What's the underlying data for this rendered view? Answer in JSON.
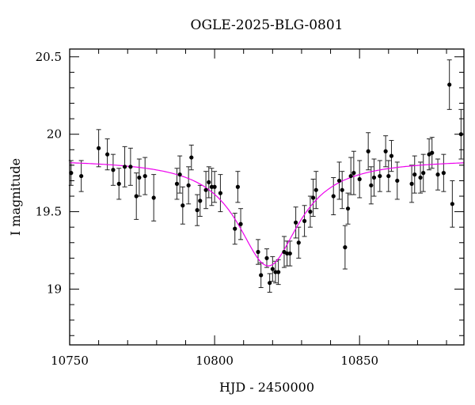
{
  "chart_data": {
    "type": "scatter",
    "title": "OGLE-2025-BLG-0801",
    "xlabel": "HJD - 2450000",
    "ylabel": "I magnitude",
    "xlim": [
      10750,
      10886
    ],
    "ylim": [
      20.55,
      18.64
    ],
    "y_inverted": true,
    "xticks": [
      10750,
      10800,
      10850
    ],
    "yticks": [
      19,
      19.5,
      20,
      20.5
    ],
    "ytick_labels": [
      "19",
      "19.5",
      "20",
      "20.5"
    ],
    "grid": false,
    "legend": "none",
    "colors": {
      "points": "#000000",
      "model": "#ee00ee",
      "axes": "#000000"
    },
    "series": [
      {
        "kind": "data_with_errors",
        "points": [
          [
            10750.5,
            19.75,
            0.08
          ],
          [
            10754.0,
            19.73,
            0.1
          ],
          [
            10760.0,
            19.91,
            0.12
          ],
          [
            10763.0,
            19.87,
            0.1
          ],
          [
            10765.0,
            19.77,
            0.1
          ],
          [
            10767.0,
            19.68,
            0.1
          ],
          [
            10769.0,
            19.79,
            0.13
          ],
          [
            10771.0,
            19.79,
            0.12
          ],
          [
            10773.0,
            19.6,
            0.15
          ],
          [
            10774.0,
            19.72,
            0.12
          ],
          [
            10776.0,
            19.73,
            0.12
          ],
          [
            10779.0,
            19.59,
            0.15
          ],
          [
            10787.0,
            19.68,
            0.1
          ],
          [
            10788.0,
            19.74,
            0.12
          ],
          [
            10789.0,
            19.54,
            0.12
          ],
          [
            10791.0,
            19.67,
            0.12
          ],
          [
            10792.0,
            19.85,
            0.08
          ],
          [
            10794.0,
            19.51,
            0.1
          ],
          [
            10795.0,
            19.57,
            0.1
          ],
          [
            10797.0,
            19.64,
            0.12
          ],
          [
            10798.0,
            19.69,
            0.1
          ],
          [
            10799.0,
            19.66,
            0.12
          ],
          [
            10800.0,
            19.66,
            0.1
          ],
          [
            10802.0,
            19.62,
            0.12
          ],
          [
            10807.0,
            19.39,
            0.1
          ],
          [
            10808.0,
            19.66,
            0.1
          ],
          [
            10809.0,
            19.42,
            0.1
          ],
          [
            10815.0,
            19.24,
            0.08
          ],
          [
            10816.0,
            19.09,
            0.08
          ],
          [
            10818.0,
            19.2,
            0.06
          ],
          [
            10819.0,
            19.04,
            0.06
          ],
          [
            10820.0,
            19.13,
            0.08
          ],
          [
            10821.0,
            19.11,
            0.07
          ],
          [
            10822.0,
            19.11,
            0.08
          ],
          [
            10824.0,
            19.24,
            0.1
          ],
          [
            10825.0,
            19.23,
            0.08
          ],
          [
            10826.0,
            19.23,
            0.08
          ],
          [
            10828.0,
            19.43,
            0.1
          ],
          [
            10829.0,
            19.3,
            0.1
          ],
          [
            10831.0,
            19.44,
            0.1
          ],
          [
            10833.0,
            19.5,
            0.1
          ],
          [
            10834.0,
            19.59,
            0.12
          ],
          [
            10835.0,
            19.64,
            0.12
          ],
          [
            10841.0,
            19.6,
            0.12
          ],
          [
            10843.0,
            19.7,
            0.12
          ],
          [
            10844.0,
            19.64,
            0.12
          ],
          [
            10845.0,
            19.27,
            0.14
          ],
          [
            10846.0,
            19.52,
            0.1
          ],
          [
            10847.0,
            19.73,
            0.12
          ],
          [
            10848.0,
            19.75,
            0.14
          ],
          [
            10850.0,
            19.71,
            0.12
          ],
          [
            10853.0,
            19.89,
            0.12
          ],
          [
            10854.0,
            19.67,
            0.12
          ],
          [
            10855.0,
            19.72,
            0.12
          ],
          [
            10857.0,
            19.73,
            0.1
          ],
          [
            10859.0,
            19.89,
            0.1
          ],
          [
            10860.0,
            19.73,
            0.1
          ],
          [
            10861.0,
            19.86,
            0.1
          ],
          [
            10863.0,
            19.7,
            0.12
          ],
          [
            10868.0,
            19.68,
            0.12
          ],
          [
            10869.0,
            19.74,
            0.12
          ],
          [
            10871.0,
            19.72,
            0.1
          ],
          [
            10872.0,
            19.75,
            0.12
          ],
          [
            10874.0,
            19.87,
            0.1
          ],
          [
            10875.0,
            19.88,
            0.1
          ],
          [
            10877.0,
            19.74,
            0.1
          ],
          [
            10879.0,
            19.75,
            0.12
          ],
          [
            10881.0,
            20.32,
            0.16
          ],
          [
            10882.0,
            19.55,
            0.15
          ],
          [
            10885.0,
            20.0,
            0.16
          ]
        ]
      },
      {
        "kind": "model_curve",
        "model": {
          "t0": 10818.5,
          "baseline": 19.84,
          "amplitude": 0.69,
          "width": 13
        }
      }
    ]
  }
}
